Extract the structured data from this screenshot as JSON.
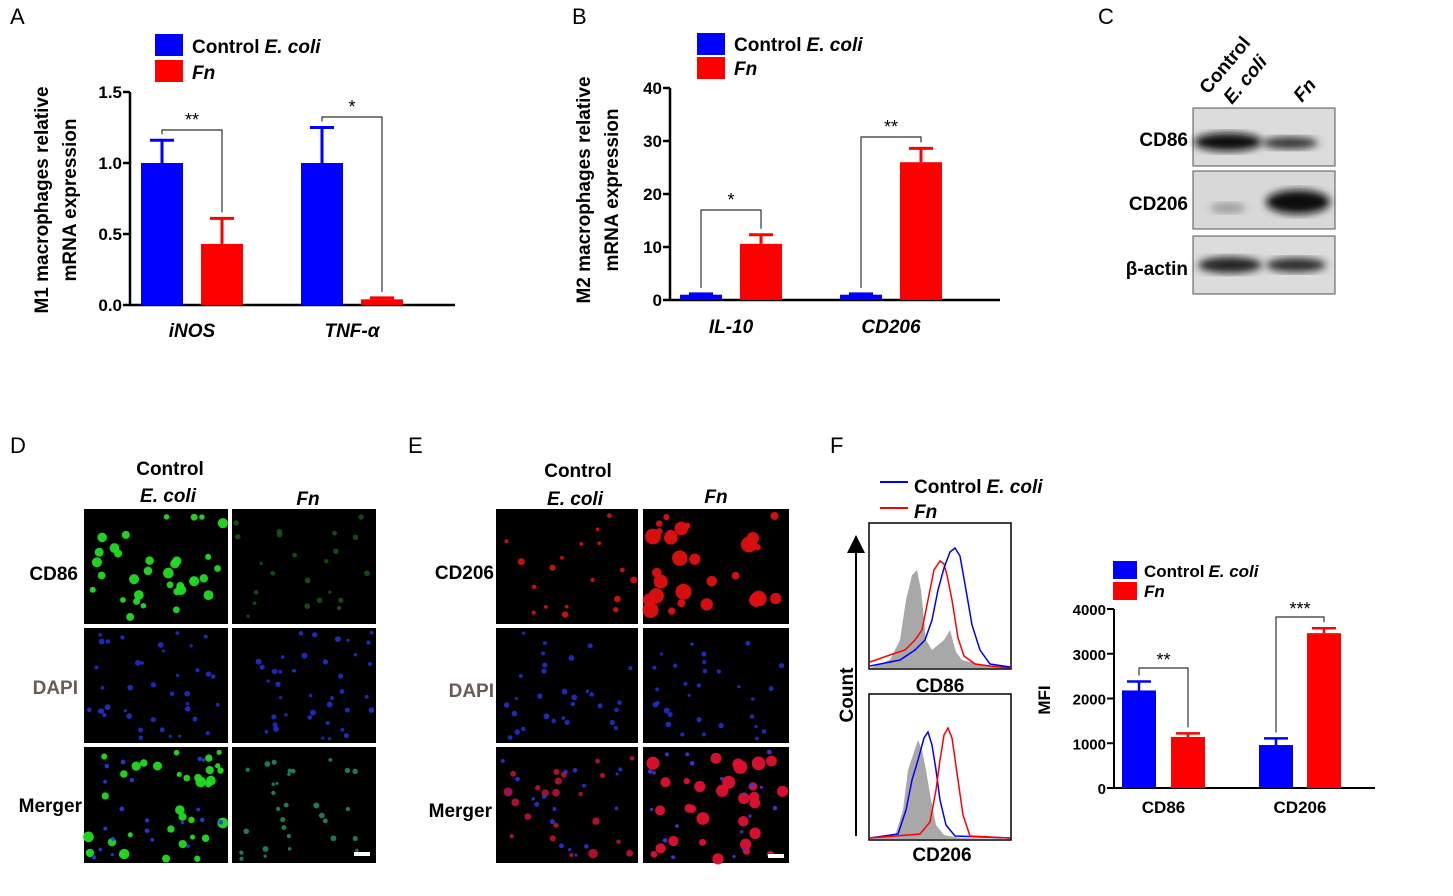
{
  "colors": {
    "control": "#0000FF",
    "fn": "#FF0000",
    "gray": "#A8A8A8",
    "black": "#000000"
  },
  "legend": {
    "control_prefix": "Control",
    "control_species": "E. coli",
    "fn": "Fn"
  },
  "chart_data": [
    {
      "panel": "A",
      "type": "bar",
      "ylabel_line1": "M1 macrophages relative",
      "ylabel_line2": "mRNA expression",
      "categories": [
        "iNOS",
        "TNF-α"
      ],
      "ylim": [
        0,
        1.5
      ],
      "yticks": [
        "0.0",
        "0.5",
        "1.0",
        "1.5"
      ],
      "series": [
        {
          "name": "Control E. coli",
          "values": [
            1.0,
            1.0
          ],
          "errors": [
            0.16,
            0.25
          ]
        },
        {
          "name": "Fn",
          "values": [
            0.43,
            0.04
          ],
          "errors": [
            0.18,
            0.01
          ]
        }
      ],
      "significance": [
        "**",
        "*"
      ]
    },
    {
      "panel": "B",
      "type": "bar",
      "ylabel_line1": "M2 macrophages relative",
      "ylabel_line2": "mRNA expression",
      "categories": [
        "IL-10",
        "CD206"
      ],
      "ylim": [
        0,
        40
      ],
      "yticks": [
        "0",
        "10",
        "20",
        "30",
        "40"
      ],
      "series": [
        {
          "name": "Control E. coli",
          "values": [
            1.0,
            1.0
          ],
          "errors": [
            0.15,
            0.15
          ]
        },
        {
          "name": "Fn",
          "values": [
            10.6,
            26.0
          ],
          "errors": [
            1.7,
            2.6
          ]
        }
      ],
      "significance": [
        "*",
        "**"
      ]
    },
    {
      "panel": "F-bar",
      "type": "bar",
      "ylabel": "MFI",
      "categories": [
        "CD86",
        "CD206"
      ],
      "ylim": [
        0,
        4000
      ],
      "yticks": [
        "0",
        "1000",
        "2000",
        "3000",
        "4000"
      ],
      "series": [
        {
          "name": "Control E. coli",
          "values": [
            2180,
            960
          ],
          "errors": [
            200,
            150
          ]
        },
        {
          "name": "Fn",
          "values": [
            1140,
            3460
          ],
          "errors": [
            80,
            110
          ]
        }
      ],
      "significance": [
        "**",
        "***"
      ]
    }
  ],
  "panels": {
    "A": "A",
    "B": "B",
    "C": "C",
    "D": "D",
    "E": "E",
    "F": "F"
  },
  "western": {
    "col_control_line1": "Control",
    "col_control_line2": "E. coli",
    "col_fn": "Fn",
    "rows": [
      "CD86",
      "CD206",
      "β-actin"
    ]
  },
  "micro_D": {
    "col_control_line1": "Control",
    "col_control_line2": "E. coli",
    "col_fn": "Fn",
    "rows": [
      "CD86",
      "DAPI",
      "Merger"
    ]
  },
  "micro_E": {
    "col_control_line1": "Control",
    "col_control_line2": "E. coli",
    "col_fn": "Fn",
    "rows": [
      "CD206",
      "DAPI",
      "Merger"
    ]
  },
  "flow": {
    "count_label": "Count",
    "hist_top_label": "CD86",
    "hist_bottom_label": "CD206"
  }
}
